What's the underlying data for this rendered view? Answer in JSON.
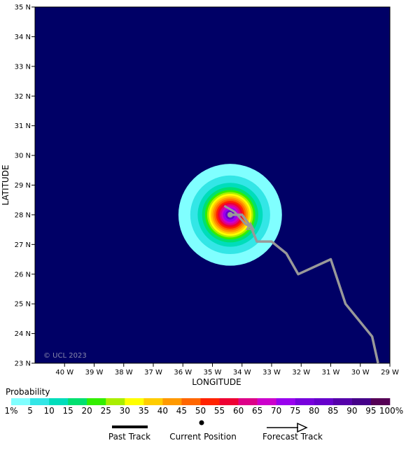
{
  "map": {
    "background_color": "#000066",
    "lat_range": [
      23,
      35
    ],
    "lon_range_west": [
      41,
      29
    ],
    "lat_ticks": [
      "35 N",
      "34 N",
      "33 N",
      "32 N",
      "31 N",
      "30 N",
      "29 N",
      "28 N",
      "27 N",
      "26 N",
      "25 N",
      "24 N",
      "23 N"
    ],
    "lon_ticks": [
      "40 W",
      "39 W",
      "38 W",
      "37 W",
      "36 W",
      "35 W",
      "34 W",
      "33 W",
      "32 W",
      "31 W",
      "30 W",
      "29 W"
    ],
    "x_axis_title": "LONGITUDE",
    "y_axis_title": "LATITUDE",
    "watermark": "© UCL 2023",
    "current_position": {
      "lat": 28.0,
      "lon_w": 34.4
    },
    "probability_rings": [
      {
        "radius_deg": 1.75,
        "color": "#80ffff"
      },
      {
        "radius_deg": 1.35,
        "color": "#33e6e6"
      },
      {
        "radius_deg": 1.1,
        "color": "#00ddbb"
      },
      {
        "radius_deg": 0.95,
        "color": "#00e070"
      },
      {
        "radius_deg": 0.85,
        "color": "#33ee00"
      },
      {
        "radius_deg": 0.78,
        "color": "#aaee00"
      },
      {
        "radius_deg": 0.72,
        "color": "#ffff00"
      },
      {
        "radius_deg": 0.66,
        "color": "#ffcc00"
      },
      {
        "radius_deg": 0.6,
        "color": "#ff9900"
      },
      {
        "radius_deg": 0.54,
        "color": "#ff6600"
      },
      {
        "radius_deg": 0.48,
        "color": "#ff2200"
      },
      {
        "radius_deg": 0.42,
        "color": "#ee0033"
      },
      {
        "radius_deg": 0.36,
        "color": "#dd0088"
      },
      {
        "radius_deg": 0.3,
        "color": "#cc00cc"
      },
      {
        "radius_deg": 0.24,
        "color": "#9900ee"
      },
      {
        "radius_deg": 0.16,
        "color": "#6600cc"
      }
    ],
    "past_track": [
      {
        "lat": 28.3,
        "lon_w": 34.6
      },
      {
        "lat": 28.1,
        "lon_w": 34.25
      },
      {
        "lat": 27.7,
        "lon_w": 33.9
      },
      {
        "lat": 27.5,
        "lon_w": 33.6
      }
    ],
    "forecast_track": [
      {
        "lat": 28.0,
        "lon_w": 34.4
      },
      {
        "lat": 28.0,
        "lon_w": 34.0
      },
      {
        "lat": 27.6,
        "lon_w": 33.7
      },
      {
        "lat": 27.1,
        "lon_w": 33.5
      },
      {
        "lat": 27.1,
        "lon_w": 33.0
      },
      {
        "lat": 26.7,
        "lon_w": 32.5
      },
      {
        "lat": 26.0,
        "lon_w": 32.1
      },
      {
        "lat": 26.5,
        "lon_w": 31.0
      },
      {
        "lat": 25.0,
        "lon_w": 30.5
      },
      {
        "lat": 23.9,
        "lon_w": 29.6
      },
      {
        "lat": 23.0,
        "lon_w": 29.4
      }
    ],
    "track_color": "#999999"
  },
  "probability": {
    "title": "Probability",
    "bands": [
      {
        "color": "#80ffff",
        "label": "1%"
      },
      {
        "color": "#33e6e6",
        "label": "5"
      },
      {
        "color": "#00ddbb",
        "label": "10"
      },
      {
        "color": "#00e070",
        "label": "15"
      },
      {
        "color": "#33ee00",
        "label": "20"
      },
      {
        "color": "#aaee00",
        "label": "25"
      },
      {
        "color": "#ffff00",
        "label": "30"
      },
      {
        "color": "#ffcc00",
        "label": "35"
      },
      {
        "color": "#ff9900",
        "label": "40"
      },
      {
        "color": "#ff6600",
        "label": "45"
      },
      {
        "color": "#ff2200",
        "label": "50"
      },
      {
        "color": "#ee0033",
        "label": "55"
      },
      {
        "color": "#dd0088",
        "label": "60"
      },
      {
        "color": "#cc00cc",
        "label": "65"
      },
      {
        "color": "#9900ee",
        "label": "70"
      },
      {
        "color": "#7700dd",
        "label": "75"
      },
      {
        "color": "#6600cc",
        "label": "80"
      },
      {
        "color": "#5500aa",
        "label": "85"
      },
      {
        "color": "#440088",
        "label": "90"
      },
      {
        "color": "#550055",
        "label": "95"
      }
    ],
    "end_label": "100%"
  },
  "legend": {
    "past_track": "Past Track",
    "current_position": "Current Position",
    "forecast_track": "Forecast Track"
  }
}
